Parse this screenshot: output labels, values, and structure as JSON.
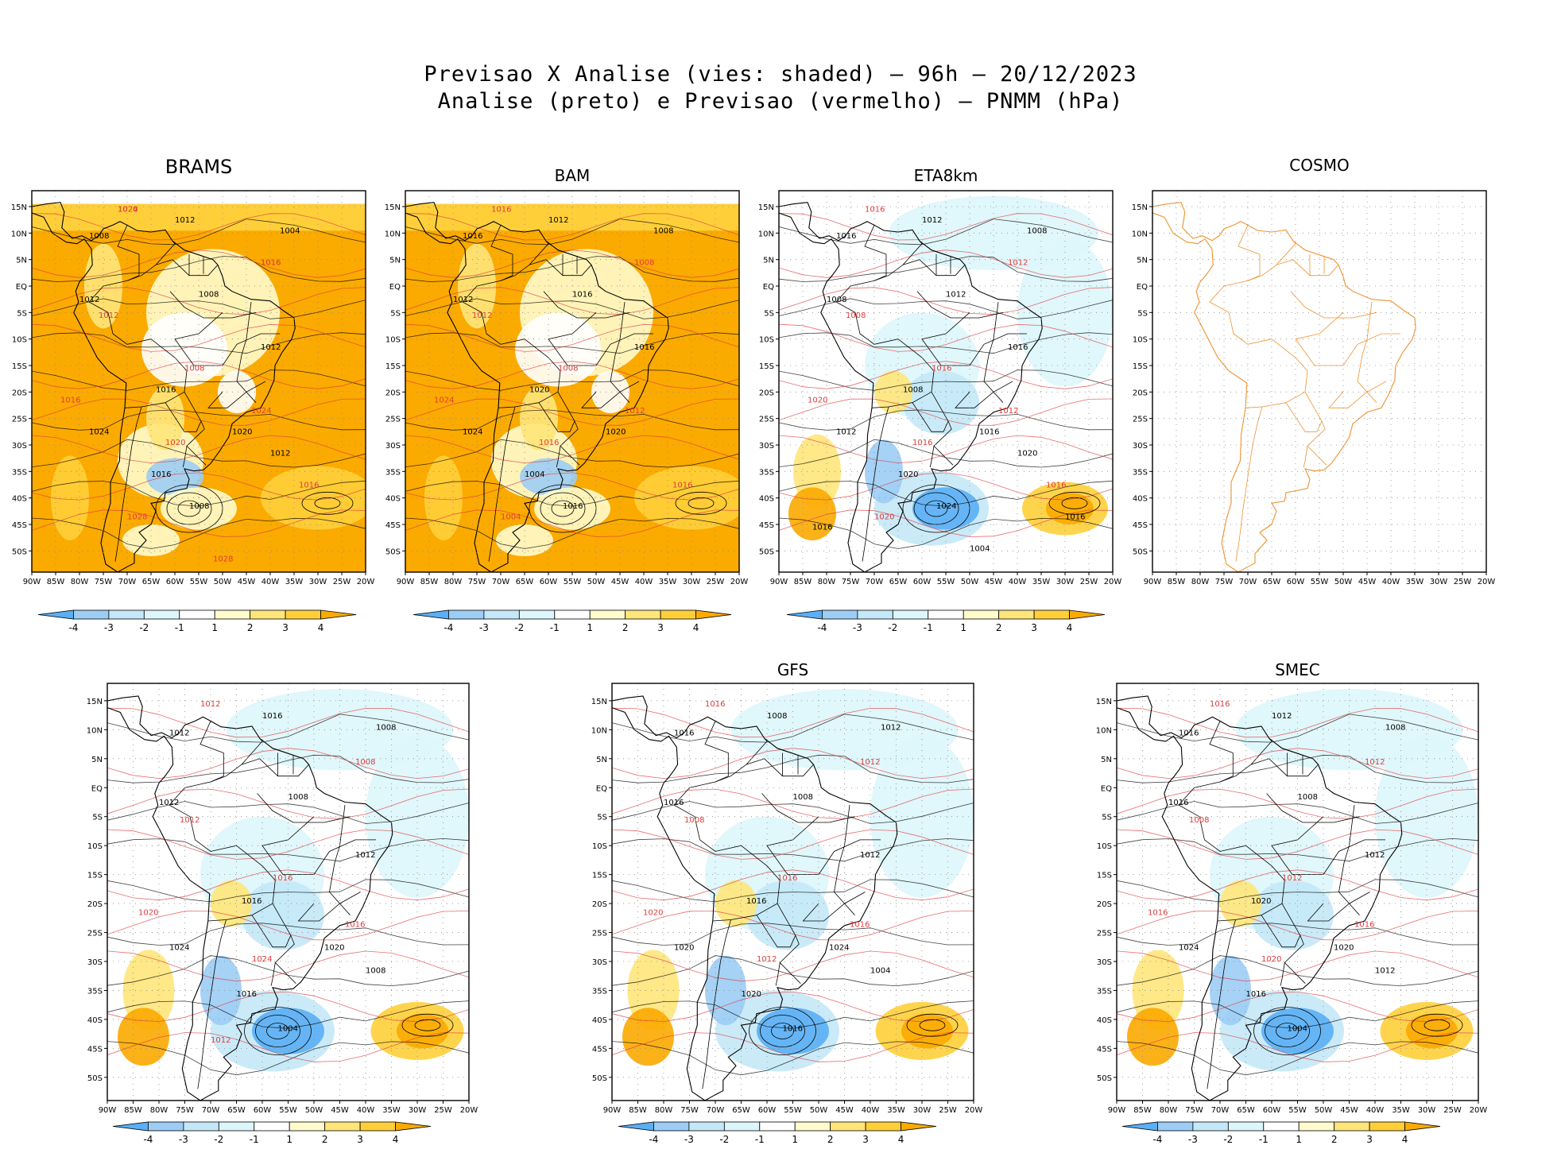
{
  "title": {
    "line1": "Previsao X Analise (vies: shaded) – 96h – 20/12/2023",
    "line2": "Analise (preto) e Previsao (vermelho) – PNMM (hPa)"
  },
  "colors": {
    "neg4": "#5aaff5",
    "neg3": "#9ccdf5",
    "neg2": "#c4e8f7",
    "neg1": "#ddf6fb",
    "zero": "#ffffff",
    "pos1": "#fffbcc",
    "pos2": "#ffe57a",
    "pos3": "#ffcf3a",
    "pos4": "#fbaa00",
    "analysis_contour": "#000000",
    "forecast_contour": "#e23b3b",
    "cosmo_coast": "#f0922e"
  },
  "axes": {
    "lon_ticks": [
      "90W",
      "85W",
      "80W",
      "75W",
      "70W",
      "65W",
      "60W",
      "55W",
      "50W",
      "45W",
      "40W",
      "35W",
      "30W",
      "25W",
      "20W"
    ],
    "lat_ticks": [
      "15N",
      "10N",
      "5N",
      "EQ",
      "5S",
      "10S",
      "15S",
      "20S",
      "25S",
      "30S",
      "35S",
      "40S",
      "45S",
      "50S"
    ]
  },
  "colorbar": {
    "labels": [
      "-4",
      "-3",
      "-2",
      "-1",
      "1",
      "2",
      "3",
      "4"
    ]
  },
  "chart_data": [
    {
      "type": "heatmap",
      "model": "BRAMS",
      "title": "BRAMS",
      "bias_tendency": "positive",
      "analysis_labels": [
        "1008",
        "1012",
        "1004",
        "1012",
        "1008",
        "1012",
        "1016",
        "1024",
        "1020",
        "1016",
        "1008",
        "1012"
      ],
      "forecast_labels": [
        "1020",
        "1016",
        "1012",
        "1008",
        "1016",
        "1020",
        "1024",
        "1028",
        "1016",
        "1028",
        "1024",
        "1016"
      ]
    },
    {
      "type": "heatmap",
      "model": "BAM",
      "title": "BAM",
      "bias_tendency": "positive",
      "analysis_labels": [
        "1016",
        "1012",
        "1008",
        "1012",
        "1016",
        "1016",
        "1020",
        "1024",
        "1020",
        "1004",
        "1016"
      ],
      "forecast_labels": [
        "1016",
        "1008",
        "1012",
        "1008",
        "1024",
        "1016",
        "1012",
        "1004",
        "1016"
      ]
    },
    {
      "type": "heatmap",
      "model": "ETA8km",
      "title": "ETA8km",
      "bias_tendency": "negative",
      "analysis_labels": [
        "1016",
        "1012",
        "1008",
        "1008",
        "1012",
        "1016",
        "1008",
        "1012",
        "1016",
        "1020",
        "1024",
        "1020",
        "1016",
        "1004",
        "1016"
      ],
      "forecast_labels": [
        "1016",
        "1012",
        "1008",
        "1016",
        "1020",
        "1016",
        "1012",
        "1020",
        "1016"
      ]
    },
    {
      "type": "heatmap",
      "model": "COSMO",
      "title": "COSMO",
      "bias_tendency": "none"
    },
    {
      "type": "heatmap",
      "model": "",
      "title": "",
      "bias_tendency": "negative",
      "analysis_labels": [
        "1012",
        "1016",
        "1008",
        "1012",
        "1008",
        "1012",
        "1016",
        "1024",
        "1020",
        "1016",
        "1004",
        "1008"
      ],
      "forecast_labels": [
        "1012",
        "1008",
        "1012",
        "1016",
        "1020",
        "1024",
        "1016",
        "1012"
      ]
    },
    {
      "type": "heatmap",
      "model": "GFS",
      "title": "GFS",
      "bias_tendency": "negative",
      "analysis_labels": [
        "1016",
        "1008",
        "1012",
        "1016",
        "1008",
        "1012",
        "1016",
        "1020",
        "1024",
        "1020",
        "1016",
        "1004"
      ],
      "forecast_labels": [
        "1016",
        "1012",
        "1008",
        "1016",
        "1020",
        "1012",
        "1016"
      ]
    },
    {
      "type": "heatmap",
      "model": "SMEC",
      "title": "SMEC",
      "bias_tendency": "negative",
      "analysis_labels": [
        "1016",
        "1012",
        "1008",
        "1016",
        "1008",
        "1012",
        "1020",
        "1024",
        "1020",
        "1016",
        "1004",
        "1012"
      ],
      "forecast_labels": [
        "1016",
        "1012",
        "1008",
        "1012",
        "1016",
        "1020",
        "1016"
      ]
    }
  ]
}
